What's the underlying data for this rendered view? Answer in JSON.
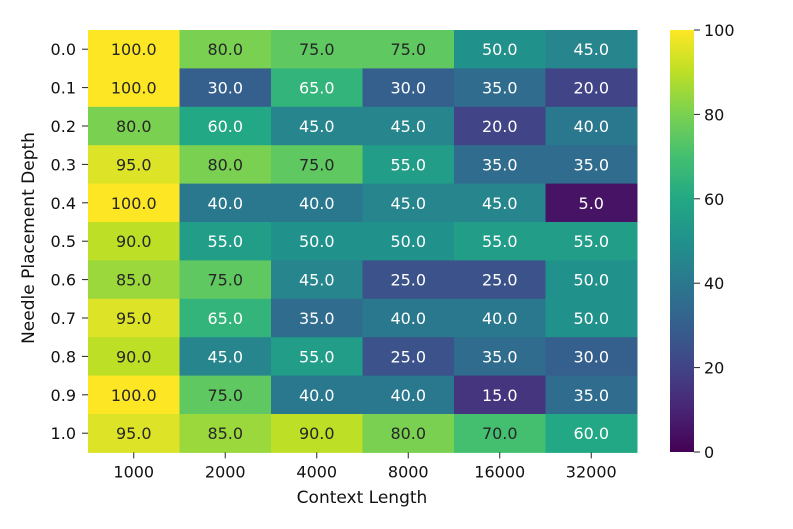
{
  "chart_data": {
    "type": "heatmap",
    "xlabel": "Context Length",
    "ylabel": "Needle Placement Depth",
    "x_categories": [
      "1000",
      "2000",
      "4000",
      "8000",
      "16000",
      "32000"
    ],
    "y_categories": [
      "0.0",
      "0.1",
      "0.2",
      "0.3",
      "0.4",
      "0.5",
      "0.6",
      "0.7",
      "0.8",
      "0.9",
      "1.0"
    ],
    "values": [
      [
        100.0,
        80.0,
        75.0,
        75.0,
        50.0,
        45.0
      ],
      [
        100.0,
        30.0,
        65.0,
        30.0,
        35.0,
        20.0
      ],
      [
        80.0,
        60.0,
        45.0,
        45.0,
        20.0,
        40.0
      ],
      [
        95.0,
        80.0,
        75.0,
        55.0,
        35.0,
        35.0
      ],
      [
        100.0,
        40.0,
        40.0,
        45.0,
        45.0,
        5.0
      ],
      [
        90.0,
        55.0,
        50.0,
        50.0,
        55.0,
        55.0
      ],
      [
        85.0,
        75.0,
        45.0,
        25.0,
        25.0,
        50.0
      ],
      [
        95.0,
        65.0,
        35.0,
        40.0,
        40.0,
        50.0
      ],
      [
        90.0,
        45.0,
        55.0,
        25.0,
        35.0,
        30.0
      ],
      [
        100.0,
        75.0,
        40.0,
        40.0,
        15.0,
        35.0
      ],
      [
        95.0,
        85.0,
        90.0,
        80.0,
        70.0,
        60.0
      ]
    ],
    "colorscale": "viridis",
    "vmin": 0,
    "vmax": 100,
    "colorbar_ticks": [
      "0",
      "20",
      "40",
      "60",
      "80",
      "100"
    ],
    "value_format": "one decimal",
    "grid": false,
    "legend": "colorbar right"
  }
}
